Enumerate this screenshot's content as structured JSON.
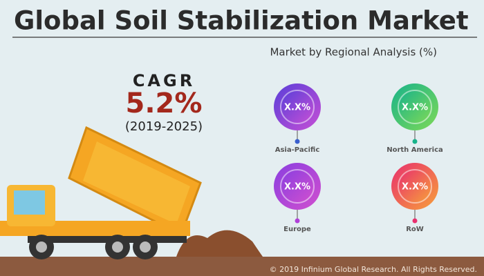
{
  "header": {
    "title": "Global Soil Stabilization Market",
    "subtitle": "Market by Regional Analysis (%)"
  },
  "cagr": {
    "label": "CAGR",
    "value": "5.2%",
    "period": "(2019-2025)"
  },
  "regions": [
    {
      "value": "X.X%",
      "label": "Asia-Pacific"
    },
    {
      "value": "X.X%",
      "label": "North America"
    },
    {
      "value": "X.X%",
      "label": "Europe"
    },
    {
      "value": "X.X%",
      "label": "RoW"
    }
  ],
  "footer": "© 2019 Infinium Global Research. All Rights Reserved."
}
